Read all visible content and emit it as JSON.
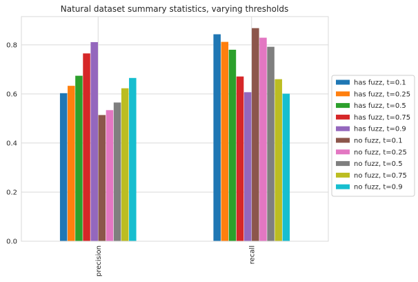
{
  "chart_data": {
    "type": "bar",
    "title": "Natural dataset summary statistics, varying thresholds",
    "xlabel": "",
    "ylabel": "",
    "categories": [
      "precision",
      "recall"
    ],
    "ylim": [
      0,
      0.915
    ],
    "yticks": [
      "0.0",
      "0.2",
      "0.4",
      "0.6",
      "0.8"
    ],
    "ytick_values": [
      0,
      0.2,
      0.4,
      0.6,
      0.8
    ],
    "grid": true,
    "legend_position": "right",
    "series": [
      {
        "name": "has fuzz, t=0.1",
        "color": "#1f77b4",
        "values": [
          0.603,
          0.843
        ]
      },
      {
        "name": "has fuzz, t=0.25",
        "color": "#ff7f0e",
        "values": [
          0.633,
          0.812
        ]
      },
      {
        "name": "has fuzz, t=0.5",
        "color": "#2ca02c",
        "values": [
          0.674,
          0.78
        ]
      },
      {
        "name": "has fuzz, t=0.75",
        "color": "#d62728",
        "values": [
          0.765,
          0.671
        ]
      },
      {
        "name": "has fuzz, t=0.9",
        "color": "#9467bd",
        "values": [
          0.811,
          0.607
        ]
      },
      {
        "name": "no fuzz, t=0.1",
        "color": "#8c564b",
        "values": [
          0.514,
          0.868
        ]
      },
      {
        "name": "no fuzz, t=0.25",
        "color": "#e377c2",
        "values": [
          0.534,
          0.829
        ]
      },
      {
        "name": "no fuzz, t=0.5",
        "color": "#7f7f7f",
        "values": [
          0.565,
          0.792
        ]
      },
      {
        "name": "no fuzz, t=0.75",
        "color": "#bcbd22",
        "values": [
          0.623,
          0.66
        ]
      },
      {
        "name": "no fuzz, t=0.9",
        "color": "#17becf",
        "values": [
          0.665,
          0.601
        ]
      }
    ]
  }
}
